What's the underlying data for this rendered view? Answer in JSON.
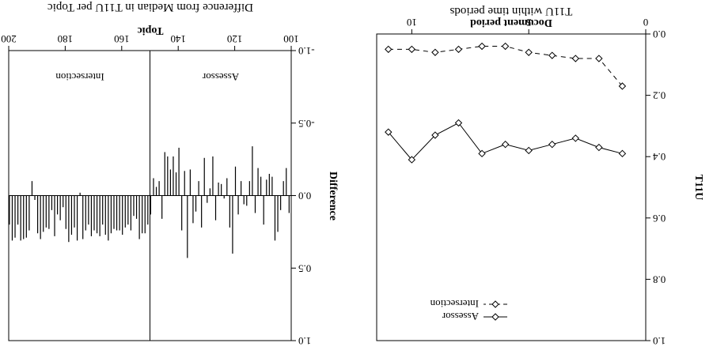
{
  "chart_data": [
    {
      "type": "line",
      "title": "T11U within time periods",
      "xlabel": "Document period",
      "ylabel": "T11U",
      "xlim": [
        0,
        11.5
      ],
      "ylim": [
        0.0,
        1.0
      ],
      "xticks": [
        "0",
        "5",
        "10"
      ],
      "yticks": [
        "0.0",
        "0.2",
        "0.4",
        "0.6",
        "0.8",
        "1.0"
      ],
      "x": [
        1,
        2,
        3,
        4,
        5,
        6,
        7,
        8,
        9,
        10,
        11
      ],
      "series": [
        {
          "name": "Assessor",
          "marker": "diamond",
          "line": "solid",
          "values": [
            0.39,
            0.37,
            0.34,
            0.36,
            0.38,
            0.36,
            0.39,
            0.29,
            0.33,
            0.41,
            0.32
          ]
        },
        {
          "name": "Intersection",
          "marker": "diamond",
          "line": "dashed",
          "values": [
            0.17,
            0.08,
            0.08,
            0.07,
            0.06,
            0.04,
            0.04,
            0.05,
            0.06,
            0.05,
            0.05
          ]
        }
      ],
      "legend_position": "lower-left"
    },
    {
      "type": "bar",
      "title": "Difference from Median in T11U per Topic",
      "xlabel": "Topic",
      "ylabel": "Difference",
      "xlim": [
        100,
        200
      ],
      "ylim": [
        -1.0,
        1.0
      ],
      "xticks": [
        "100",
        "120",
        "140",
        "160",
        "180",
        "200"
      ],
      "yticks": [
        "-1.0",
        "-0.5",
        "0.0",
        "0.5",
        "1.0"
      ],
      "panels": [
        "Assessor",
        "Intersection"
      ],
      "panel_split": 150,
      "x": [
        101,
        102,
        103,
        104,
        105,
        106,
        107,
        108,
        109,
        110,
        111,
        112,
        113,
        114,
        115,
        116,
        117,
        118,
        119,
        120,
        121,
        122,
        123,
        124,
        125,
        126,
        127,
        128,
        129,
        130,
        131,
        132,
        133,
        134,
        135,
        136,
        137,
        138,
        139,
        140,
        141,
        142,
        143,
        144,
        145,
        146,
        147,
        148,
        149,
        150,
        151,
        152,
        153,
        154,
        155,
        156,
        157,
        158,
        159,
        160,
        161,
        162,
        163,
        164,
        165,
        166,
        167,
        168,
        169,
        170,
        171,
        172,
        173,
        174,
        175,
        176,
        177,
        178,
        179,
        180,
        181,
        182,
        183,
        184,
        185,
        186,
        187,
        188,
        189,
        190,
        191,
        192,
        193,
        194,
        195,
        196,
        197,
        198,
        199,
        200
      ],
      "values": [
        0.12,
        -0.19,
        -0.1,
        0.1,
        0.25,
        0.31,
        -0.13,
        -0.15,
        -0.11,
        0.2,
        -0.13,
        -0.19,
        0.12,
        -0.34,
        -0.1,
        0.07,
        0.06,
        -0.1,
        0.13,
        -0.2,
        0.4,
        0.22,
        -0.12,
        0.02,
        -0.08,
        -0.09,
        0.17,
        -0.27,
        -0.05,
        0.05,
        -0.26,
        0.22,
        -0.1,
        0.11,
        0.19,
        -0.18,
        0.43,
        -0.17,
        0.24,
        -0.33,
        -0.16,
        -0.27,
        -0.18,
        -0.27,
        -0.3,
        0.16,
        -0.1,
        -0.06,
        -0.12,
        0.13,
        0.2,
        0.26,
        0.26,
        0.3,
        0.16,
        0.14,
        0.24,
        0.2,
        0.22,
        0.27,
        0.24,
        0.24,
        0.23,
        0.26,
        0.31,
        0.27,
        0.2,
        0.28,
        0.26,
        0.24,
        0.28,
        0.2,
        0.24,
        0.3,
        -0.02,
        0.31,
        0.22,
        0.27,
        0.32,
        0.23,
        0.08,
        0.17,
        0.13,
        0.28,
        0.1,
        0.23,
        0.22,
        0.25,
        0.3,
        0.26,
        0.03,
        -0.1,
        0.24,
        0.29,
        0.3,
        0.31,
        0.2,
        0.29,
        0.31,
        0.2
      ]
    }
  ],
  "legend": {
    "assessor": "Assessor",
    "intersection": "Intersection"
  }
}
